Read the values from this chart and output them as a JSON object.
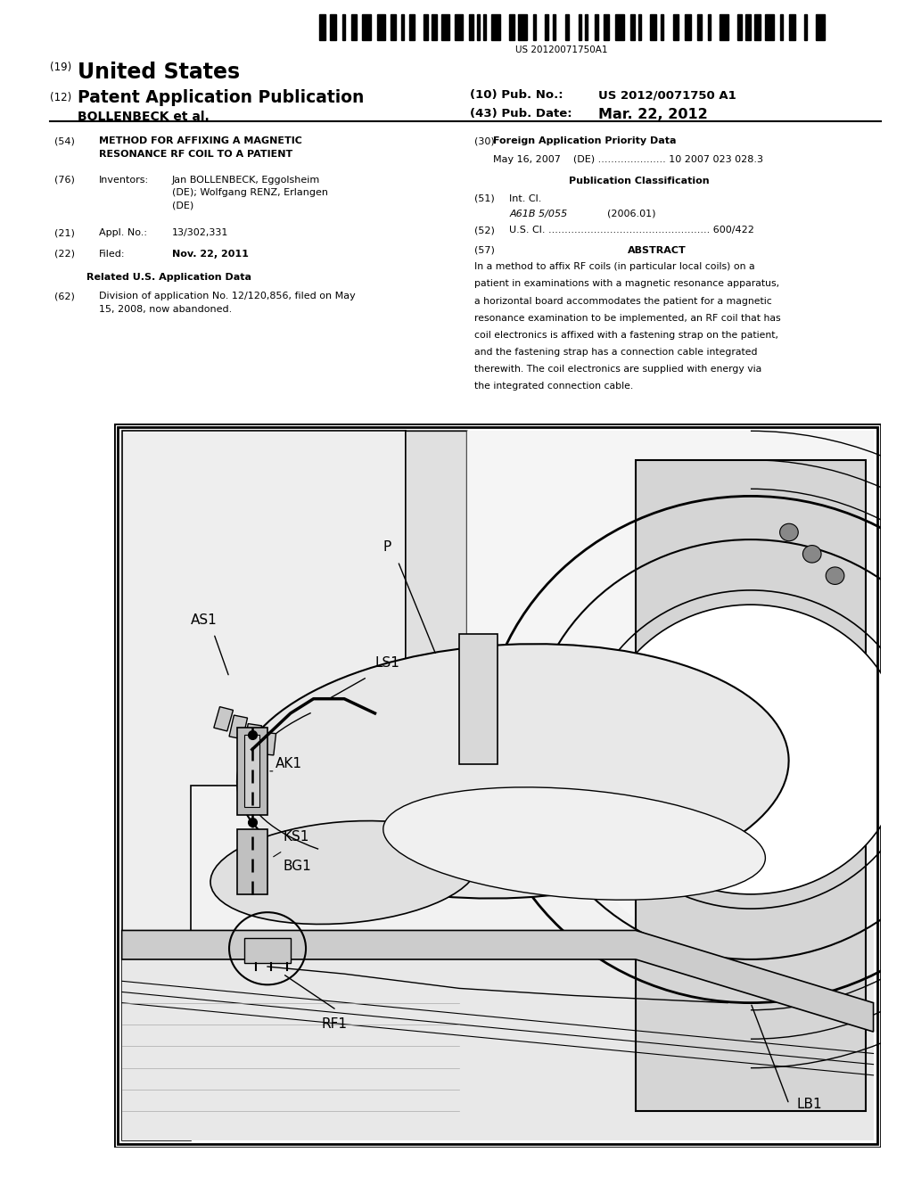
{
  "background_color": "#ffffff",
  "barcode_text": "US 20120071750A1",
  "pub_no_value": "US 2012/0071750 A1",
  "pub_date_value": "Mar. 22, 2012",
  "applicant_name": "BOLLENBECK et al.",
  "section54_title": "METHOD FOR AFFIXING A MAGNETIC\nRESONANCE RF COIL TO A PATIENT",
  "section76_value": "Jan BOLLENBECK, Eggolsheim\n(DE); Wolfgang RENZ, Erlangen\n(DE)",
  "section21_value": "13/302,331",
  "section22_value": "Nov. 22, 2011",
  "section62_value": "Division of application No. 12/120,856, filed on May\n15, 2008, now abandoned.",
  "foreign_data": "May 16, 2007    (DE) ..................... 10 2007 023 028.3",
  "section51_value": "A61B 5/055",
  "section51_year": "(2006.01)",
  "abstract_lines": [
    "In a method to affix RF coils (in particular local coils) on a",
    "patient in examinations with a magnetic resonance apparatus,",
    "a horizontal board accommodates the patient for a magnetic",
    "resonance examination to be implemented, an RF coil that has",
    "coil electronics is affixed with a fastening strap on the patient,",
    "and the fastening strap has a connection cable integrated",
    "therewith. The coil electronics are supplied with energy via",
    "the integrated connection cable."
  ]
}
